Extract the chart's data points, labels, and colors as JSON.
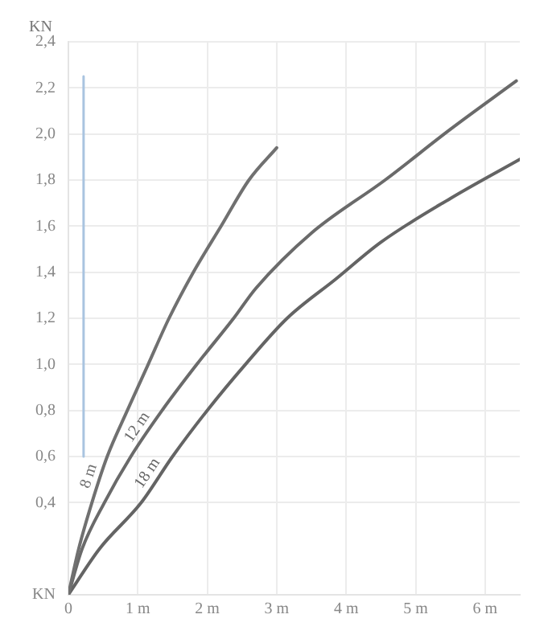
{
  "chart_data": {
    "type": "line",
    "ylabel": "KN",
    "xlim": [
      0,
      6.5
    ],
    "ylim": [
      0,
      2.4
    ],
    "xticks": [
      {
        "value": 0,
        "label": "0"
      },
      {
        "value": 1,
        "label": "1 m"
      },
      {
        "value": 2,
        "label": "2 m"
      },
      {
        "value": 3,
        "label": "3 m"
      },
      {
        "value": 4,
        "label": "4 m"
      },
      {
        "value": 5,
        "label": "5 m"
      },
      {
        "value": 6,
        "label": "6 m"
      }
    ],
    "yticks": [
      {
        "value": 0,
        "label": "KN"
      },
      {
        "value": 0.4,
        "label": "0,4"
      },
      {
        "value": 0.6,
        "label": "0,6"
      },
      {
        "value": 0.8,
        "label": "0,8"
      },
      {
        "value": 1,
        "label": "1,0"
      },
      {
        "value": 1.2,
        "label": "1,2"
      },
      {
        "value": 1.4,
        "label": "1,4"
      },
      {
        "value": 1.6,
        "label": "1,6"
      },
      {
        "value": 1.8,
        "label": "1,8"
      },
      {
        "value": 2,
        "label": "2,0"
      },
      {
        "value": 2.2,
        "label": "2,2"
      },
      {
        "value": 2.4,
        "label": "2,4"
      }
    ],
    "grid": true,
    "marker": "none",
    "line_style": "solid",
    "series": [
      {
        "name": "8 m",
        "color": "#707070",
        "x": [
          0,
          0.15,
          0.34,
          0.56,
          0.85,
          1.15,
          1.45,
          1.8,
          2.2,
          2.6,
          3.0
        ],
        "values": [
          0,
          0.2,
          0.4,
          0.6,
          0.8,
          1.0,
          1.2,
          1.4,
          1.6,
          1.8,
          1.94
        ]
      },
      {
        "name": "12 m",
        "color": "#6a6a6a",
        "x": [
          0,
          0.2,
          0.52,
          0.9,
          1.35,
          1.85,
          2.38,
          2.7,
          3.5,
          4.56,
          5.5,
          6.45
        ],
        "values": [
          0,
          0.2,
          0.4,
          0.6,
          0.8,
          1.0,
          1.2,
          1.33,
          1.57,
          1.8,
          2.02,
          2.23
        ]
      },
      {
        "name": "18 m",
        "color": "#646464",
        "x": [
          0,
          0.45,
          1.05,
          1.5,
          2.0,
          2.55,
          3.15,
          3.85,
          4.5,
          5.5,
          6.5
        ],
        "values": [
          0,
          0.2,
          0.4,
          0.6,
          0.8,
          1.0,
          1.2,
          1.37,
          1.53,
          1.72,
          1.89
        ]
      },
      {
        "color": "#a9c4e0",
        "x": [
          0.22,
          0.22
        ],
        "values": [
          0.6,
          2.25
        ]
      }
    ]
  }
}
